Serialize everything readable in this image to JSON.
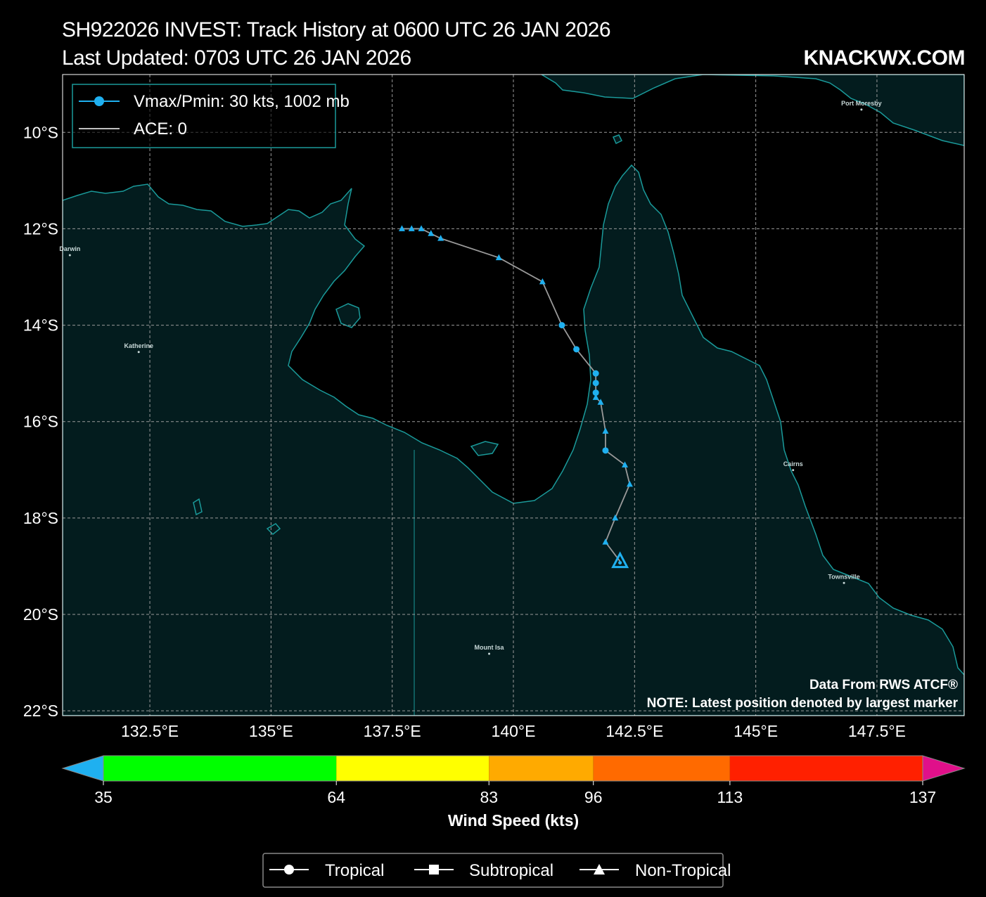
{
  "header": {
    "title_line1": "SH922026 INVEST: Track History at 0600 UTC 26 JAN 2026",
    "title_line2": "Last Updated: 0703 UTC 26 JAN 2026",
    "brand": "KNACKWX.COM"
  },
  "map": {
    "lon_range": [
      130.7,
      149.3
    ],
    "lat_range": [
      -22.1,
      -8.8
    ],
    "lon_ticks": [
      {
        "value": 132.5,
        "label": "132.5°E"
      },
      {
        "value": 135,
        "label": "135°E"
      },
      {
        "value": 137.5,
        "label": "137.5°E"
      },
      {
        "value": 140,
        "label": "140°E"
      },
      {
        "value": 142.5,
        "label": "142.5°E"
      },
      {
        "value": 145,
        "label": "145°E"
      },
      {
        "value": 147.5,
        "label": "147.5°E"
      }
    ],
    "lat_ticks": [
      {
        "value": -10,
        "label": "10°S"
      },
      {
        "value": -12,
        "label": "12°S"
      },
      {
        "value": -14,
        "label": "14°S"
      },
      {
        "value": -16,
        "label": "16°S"
      },
      {
        "value": -18,
        "label": "18°S"
      },
      {
        "value": -20,
        "label": "20°S"
      },
      {
        "value": -22,
        "label": "22°S"
      }
    ],
    "grid": true,
    "colors": {
      "ocean": "#000000",
      "land": "#031c1e",
      "coast": "#1a9a9a",
      "grid": "#9a9a9a",
      "track": "#9a9a9a",
      "marker": "#1fb0f0"
    },
    "cities": [
      {
        "name": "Darwin",
        "lon": 130.85,
        "lat": -12.46
      },
      {
        "name": "Katherine",
        "lon": 132.27,
        "lat": -14.47
      },
      {
        "name": "Mount Isa",
        "lon": 139.5,
        "lat": -20.73
      },
      {
        "name": "Cairns",
        "lon": 145.77,
        "lat": -16.92
      },
      {
        "name": "Townsville",
        "lon": 146.82,
        "lat": -19.26
      },
      {
        "name": "Port Moresby",
        "lon": 147.18,
        "lat": -9.44
      }
    ]
  },
  "track": {
    "points": [
      {
        "lon": 137.7,
        "lat": -12.0,
        "type": "Non-Tropical"
      },
      {
        "lon": 137.9,
        "lat": -12.0,
        "type": "Non-Tropical"
      },
      {
        "lon": 138.1,
        "lat": -12.0,
        "type": "Non-Tropical"
      },
      {
        "lon": 138.3,
        "lat": -12.1,
        "type": "Non-Tropical"
      },
      {
        "lon": 138.5,
        "lat": -12.2,
        "type": "Non-Tropical"
      },
      {
        "lon": 139.7,
        "lat": -12.6,
        "type": "Non-Tropical"
      },
      {
        "lon": 140.6,
        "lat": -13.1,
        "type": "Non-Tropical"
      },
      {
        "lon": 141.0,
        "lat": -14.0,
        "type": "Tropical"
      },
      {
        "lon": 141.3,
        "lat": -14.5,
        "type": "Tropical"
      },
      {
        "lon": 141.7,
        "lat": -15.0,
        "type": "Tropical"
      },
      {
        "lon": 141.7,
        "lat": -15.2,
        "type": "Tropical"
      },
      {
        "lon": 141.7,
        "lat": -15.4,
        "type": "Tropical"
      },
      {
        "lon": 141.7,
        "lat": -15.5,
        "type": "Non-Tropical"
      },
      {
        "lon": 141.8,
        "lat": -15.6,
        "type": "Non-Tropical"
      },
      {
        "lon": 141.9,
        "lat": -16.2,
        "type": "Non-Tropical"
      },
      {
        "lon": 141.9,
        "lat": -16.6,
        "type": "Tropical"
      },
      {
        "lon": 142.3,
        "lat": -16.9,
        "type": "Non-Tropical"
      },
      {
        "lon": 142.4,
        "lat": -17.3,
        "type": "Non-Tropical"
      },
      {
        "lon": 142.1,
        "lat": -18.0,
        "type": "Non-Tropical"
      },
      {
        "lon": 141.9,
        "lat": -18.5,
        "type": "Non-Tropical"
      },
      {
        "lon": 142.2,
        "lat": -18.9,
        "type": "Non-Tropical",
        "latest": true
      }
    ]
  },
  "legend_top": {
    "entries": [
      {
        "label": "Vmax/Pmin: 30 kts, 1002 mb"
      },
      {
        "label": "ACE: 0"
      }
    ]
  },
  "notes": {
    "line1": "Data From RWS ATCF®",
    "line2": "NOTE: Latest position denoted by largest marker"
  },
  "colorbar": {
    "title": "Wind Speed (kts)",
    "under_color": "#1fb0f0",
    "over_color": "#e0108a",
    "bands": [
      {
        "from": 35,
        "to": 64,
        "color": "#00ff00"
      },
      {
        "from": 64,
        "to": 83,
        "color": "#ffff00"
      },
      {
        "from": 83,
        "to": 96,
        "color": "#ffaa00"
      },
      {
        "from": 96,
        "to": 113,
        "color": "#ff6a00"
      },
      {
        "from": 113,
        "to": 137,
        "color": "#ff2000"
      }
    ],
    "tick_labels": [
      "35",
      "64",
      "83",
      "96",
      "113",
      "137"
    ]
  },
  "legend_bottom": {
    "entries": [
      {
        "label": "Tropical",
        "marker": "circle"
      },
      {
        "label": "Subtropical",
        "marker": "square"
      },
      {
        "label": "Non-Tropical",
        "marker": "triangle"
      }
    ]
  }
}
